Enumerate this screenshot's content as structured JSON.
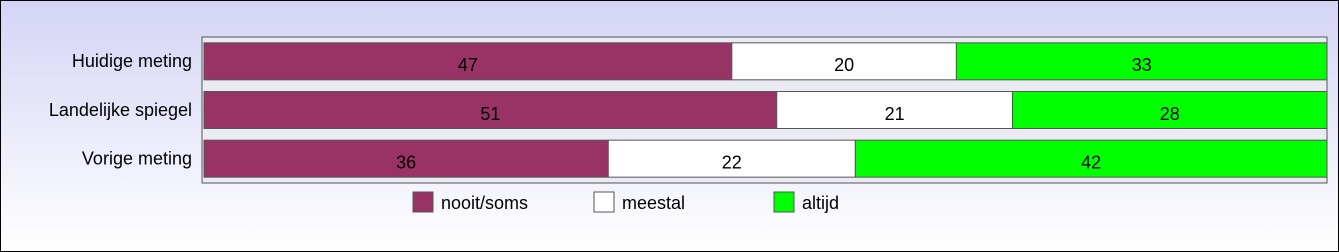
{
  "chart_data": {
    "type": "bar",
    "orientation": "horizontal",
    "stacked": true,
    "categories": [
      "Huidige meting",
      "Landelijke spiegel",
      "Vorige meting"
    ],
    "series": [
      {
        "name": "nooit/soms",
        "color": "#993366",
        "values": [
          47,
          51,
          36
        ]
      },
      {
        "name": "meestal",
        "color": "#ffffff",
        "values": [
          20,
          21,
          22
        ]
      },
      {
        "name": "altijd",
        "color": "#00ff00",
        "values": [
          33,
          28,
          42
        ]
      }
    ],
    "xlim": [
      0,
      100
    ],
    "legend": "bottom",
    "data_labels": true
  }
}
